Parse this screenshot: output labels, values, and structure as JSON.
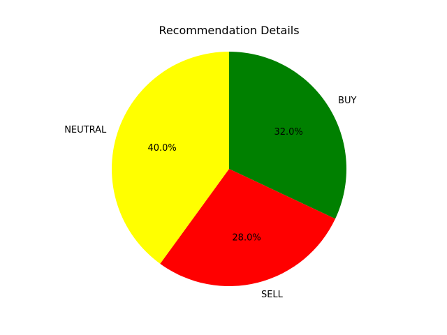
{
  "chart_data": {
    "type": "pie",
    "title": "Recommendation Details",
    "categories": [
      "BUY",
      "SELL",
      "NEUTRAL"
    ],
    "values": [
      32.0,
      28.0,
      40.0
    ],
    "percent_labels": [
      "32.0%",
      "28.0%",
      "40.0%"
    ],
    "colors": [
      "#008000",
      "#ff0000",
      "#ffff00"
    ],
    "start_angle_deg": 90,
    "direction": "clockwise"
  }
}
